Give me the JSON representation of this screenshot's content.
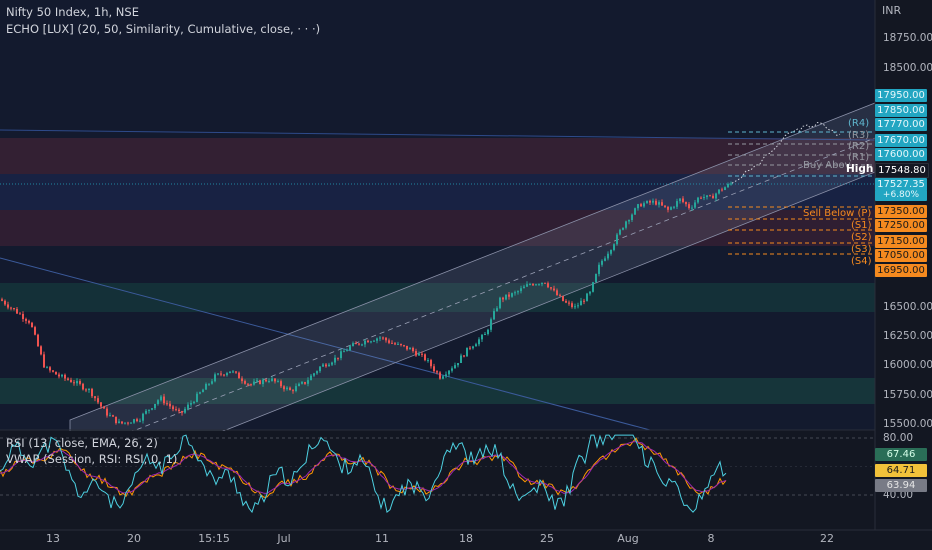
{
  "header": {
    "symbol_line": "Nifty 50 Index, 1h, NSE",
    "indicator_line": "ECHO [LUX] (20, 50, Similarity, Cumulative, close, · · ·)",
    "rsi_line": "RSI (13, close, EMA, 26, 2)",
    "vwap_line": "VWAP (Session, RSI: RSI, 0, 1)",
    "currency": "INR"
  },
  "price_axis": [
    "18750.00",
    "18500.00",
    "16500.00",
    "16250.00",
    "16000.00",
    "15750.00",
    "15500.00"
  ],
  "rsi_axis": [
    "80.00",
    "40.00"
  ],
  "time_axis": [
    "13",
    "20",
    "15:15",
    "Jul",
    "11",
    "18",
    "25",
    "Aug",
    "8",
    "22"
  ],
  "price_tags": {
    "r4": "17950.00",
    "r3": "17850.00",
    "r2": "17770.00",
    "r1": "17670.00",
    "buy_above": "17600.00",
    "high": "17548.80",
    "last": "17527.35",
    "change": "+6.80%",
    "sell_below": "17350.00",
    "s1": "17250.00",
    "s2": "17150.00",
    "s3": "17050.00",
    "s4": "16950.00"
  },
  "level_labels": {
    "r4": "(R4)",
    "r3": "(R3)",
    "r2": "(R2)",
    "r1": "(R1)",
    "buy": "Buy Abov",
    "high": "High",
    "sell": "Sell Below (P)",
    "s1": "(S1)",
    "s2": "(S2)",
    "s3": "(S3)",
    "s4": "(S4)"
  },
  "rsi_tags": {
    "rsi": "67.46",
    "ema": "64.71",
    "vwap": "63.94"
  },
  "colors": {
    "bg": "#131722",
    "up": "#26a69a",
    "down": "#ef5350",
    "cyan": "#22a6c2",
    "orange": "#f58a1f"
  },
  "chart_data": {
    "type": "candlestick",
    "symbol": "Nifty 50 Index",
    "interval": "1h",
    "close_path": [
      [
        0,
        16550
      ],
      [
        30,
        16360
      ],
      [
        45,
        15970
      ],
      [
        60,
        15900
      ],
      [
        75,
        15850
      ],
      [
        90,
        15780
      ],
      [
        105,
        15600
      ],
      [
        120,
        15500
      ],
      [
        140,
        15550
      ],
      [
        160,
        15720
      ],
      [
        180,
        15580
      ],
      [
        200,
        15760
      ],
      [
        215,
        15900
      ],
      [
        230,
        15950
      ],
      [
        250,
        15830
      ],
      [
        270,
        15880
      ],
      [
        290,
        15780
      ],
      [
        305,
        15850
      ],
      [
        320,
        15980
      ],
      [
        335,
        16050
      ],
      [
        350,
        16150
      ],
      [
        365,
        16200
      ],
      [
        380,
        16230
      ],
      [
        395,
        16170
      ],
      [
        410,
        16130
      ],
      [
        425,
        16050
      ],
      [
        440,
        15900
      ],
      [
        455,
        16000
      ],
      [
        470,
        16150
      ],
      [
        485,
        16250
      ],
      [
        500,
        16550
      ],
      [
        515,
        16600
      ],
      [
        530,
        16680
      ],
      [
        545,
        16700
      ],
      [
        555,
        16600
      ],
      [
        565,
        16520
      ],
      [
        575,
        16480
      ],
      [
        590,
        16600
      ],
      [
        600,
        16850
      ],
      [
        612,
        17000
      ],
      [
        625,
        17200
      ],
      [
        640,
        17350
      ],
      [
        655,
        17370
      ],
      [
        668,
        17300
      ],
      [
        680,
        17390
      ],
      [
        690,
        17320
      ],
      [
        700,
        17420
      ],
      [
        710,
        17400
      ],
      [
        720,
        17470
      ],
      [
        732,
        17528
      ]
    ],
    "forecast_path": [
      [
        732,
        17528
      ],
      [
        760,
        17700
      ],
      [
        790,
        17950
      ],
      [
        805,
        18000
      ],
      [
        820,
        18030
      ],
      [
        840,
        17930
      ]
    ],
    "rsi_levels": [
      80,
      40
    ]
  }
}
